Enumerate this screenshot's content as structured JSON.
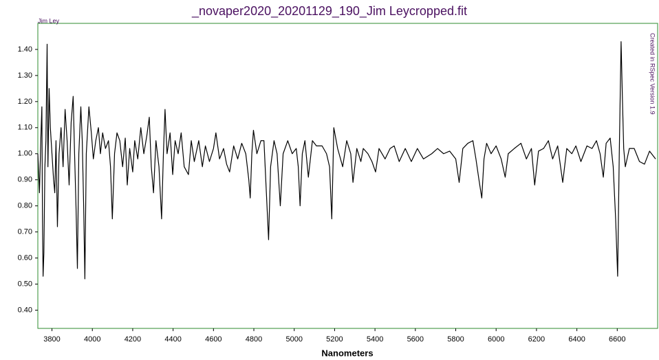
{
  "chart_data": {
    "type": "line",
    "title": "_novaper2020_20201129_190_Jim Leycropped.fit",
    "corner_note": "Jim Ley",
    "side_note": "Created in RSpec Version 1.9",
    "x_label": "Nanometers",
    "xlim": [
      3730,
      6800
    ],
    "ylim": [
      0.33,
      1.5
    ],
    "xticks": [
      3800,
      4000,
      4200,
      4400,
      4600,
      4800,
      5000,
      5200,
      5400,
      5600,
      5800,
      6000,
      6200,
      6400,
      6600
    ],
    "yticks": [
      {
        "value": 0.4,
        "label": "0.40"
      },
      {
        "value": 0.5,
        "label": "0.50"
      },
      {
        "value": 0.6,
        "label": "0.60"
      },
      {
        "value": 0.7,
        "label": "0.70"
      },
      {
        "value": 0.8,
        "label": "0.80"
      },
      {
        "value": 0.9,
        "label": "0.90"
      },
      {
        "value": 1.0,
        "label": "1.00"
      },
      {
        "value": 1.1,
        "label": "1.10"
      },
      {
        "value": 1.2,
        "label": "1.20"
      },
      {
        "value": 1.3,
        "label": "1.30"
      },
      {
        "value": 1.4,
        "label": "1.40"
      }
    ],
    "grid": false,
    "series": [
      {
        "color": "#000000",
        "x": [
          3730,
          3738,
          3745,
          3750,
          3753,
          3756,
          3760,
          3765,
          3770,
          3776,
          3780,
          3786,
          3792,
          3800,
          3808,
          3814,
          3820,
          3827,
          3835,
          3845,
          3855,
          3865,
          3875,
          3885,
          3895,
          3905,
          3912,
          3919,
          3926,
          3933,
          3943,
          3950,
          3957,
          3963,
          3970,
          3983,
          3995,
          4005,
          4017,
          4030,
          4040,
          4051,
          4065,
          4080,
          4090,
          4099,
          4110,
          4122,
          4136,
          4150,
          4163,
          4173,
          4185,
          4200,
          4210,
          4225,
          4240,
          4255,
          4270,
          4282,
          4292,
          4303,
          4315,
          4330,
          4343,
          4352,
          4360,
          4370,
          4385,
          4398,
          4410,
          4425,
          4440,
          4455,
          4476,
          4490,
          4505,
          4527,
          4545,
          4560,
          4580,
          4600,
          4612,
          4630,
          4650,
          4665,
          4680,
          4700,
          4720,
          4740,
          4760,
          4775,
          4782,
          4790,
          4798,
          4815,
          4835,
          4850,
          4862,
          4873,
          4883,
          4900,
          4915,
          4931,
          4945,
          4968,
          4990,
          5010,
          5020,
          5029,
          5040,
          5053,
          5070,
          5090,
          5110,
          5138,
          5160,
          5175,
          5186,
          5192,
          5196,
          5215,
          5240,
          5260,
          5280,
          5291,
          5310,
          5330,
          5342,
          5365,
          5385,
          5403,
          5420,
          5450,
          5475,
          5495,
          5520,
          5550,
          5580,
          5610,
          5640,
          5681,
          5710,
          5740,
          5770,
          5800,
          5817,
          5835,
          5860,
          5885,
          5900,
          5915,
          5929,
          5940,
          5953,
          5975,
          6000,
          6025,
          6045,
          6060,
          6090,
          6123,
          6150,
          6175,
          6191,
          6210,
          6235,
          6259,
          6280,
          6305,
          6330,
          6350,
          6375,
          6395,
          6420,
          6450,
          6475,
          6497,
          6515,
          6531,
          6545,
          6565,
          6580,
          6592,
          6602,
          6610,
          6619,
          6626,
          6632,
          6640,
          6660,
          6684,
          6710,
          6735,
          6760,
          6790
        ],
        "values": [
          1.0,
          0.85,
          1.06,
          1.18,
          0.75,
          0.53,
          0.62,
          0.95,
          1.05,
          1.42,
          0.95,
          1.25,
          1.1,
          1.0,
          0.9,
          0.85,
          1.05,
          0.72,
          1.0,
          1.1,
          0.95,
          1.17,
          1.05,
          0.88,
          1.12,
          1.22,
          1.0,
          0.8,
          0.56,
          1.0,
          1.18,
          1.05,
          0.8,
          0.52,
          1.0,
          1.18,
          1.08,
          0.98,
          1.05,
          1.1,
          1.0,
          1.08,
          1.02,
          1.05,
          0.95,
          0.75,
          1.0,
          1.08,
          1.05,
          0.95,
          1.06,
          0.88,
          1.02,
          0.93,
          1.05,
          0.98,
          1.1,
          1.0,
          1.07,
          1.14,
          0.95,
          0.85,
          1.05,
          0.95,
          0.75,
          1.0,
          1.17,
          1.0,
          1.08,
          0.92,
          1.05,
          1.0,
          1.08,
          0.95,
          0.92,
          1.05,
          0.97,
          1.05,
          0.95,
          1.03,
          0.97,
          1.02,
          1.08,
          0.98,
          1.02,
          0.96,
          0.93,
          1.03,
          0.98,
          1.04,
          1.0,
          0.9,
          0.83,
          1.0,
          1.09,
          1.0,
          1.05,
          1.05,
          0.85,
          0.67,
          0.95,
          1.05,
          1.0,
          0.8,
          1.0,
          1.05,
          1.0,
          1.02,
          0.95,
          0.8,
          1.0,
          1.05,
          0.91,
          1.05,
          1.03,
          1.03,
          1.0,
          0.95,
          0.75,
          0.95,
          1.1,
          1.02,
          0.95,
          1.05,
          1.0,
          0.89,
          1.02,
          0.97,
          1.02,
          1.0,
          0.97,
          0.93,
          1.02,
          0.98,
          1.02,
          1.03,
          0.97,
          1.02,
          0.97,
          1.02,
          0.98,
          1.0,
          1.02,
          1.0,
          1.01,
          0.98,
          0.89,
          1.02,
          1.04,
          1.05,
          0.98,
          0.9,
          0.83,
          0.98,
          1.04,
          1.0,
          1.03,
          0.98,
          0.91,
          1.0,
          1.02,
          1.04,
          0.98,
          1.02,
          0.88,
          1.01,
          1.02,
          1.05,
          0.98,
          1.03,
          0.89,
          1.02,
          1.0,
          1.03,
          0.97,
          1.03,
          1.02,
          1.05,
          1.0,
          0.91,
          1.04,
          1.06,
          0.95,
          0.75,
          0.53,
          1.0,
          1.43,
          1.2,
          1.02,
          0.95,
          1.02,
          1.02,
          0.97,
          0.96,
          1.01,
          0.98
        ]
      }
    ]
  }
}
